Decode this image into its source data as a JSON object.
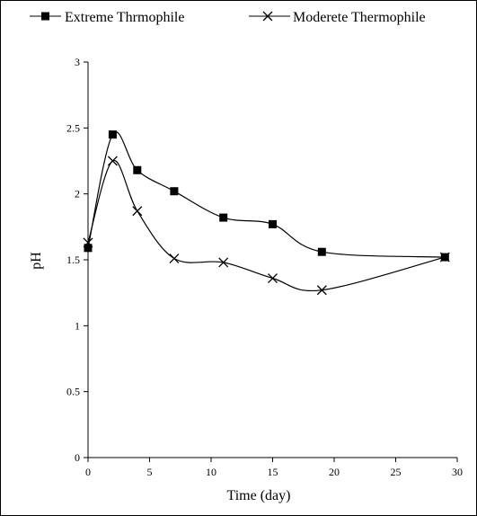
{
  "chart_data": {
    "type": "line",
    "title": "",
    "xlabel": "Time (day)",
    "ylabel": "pH",
    "xlim": [
      0,
      30
    ],
    "ylim": [
      0,
      3
    ],
    "x_ticks": [
      0,
      5,
      10,
      15,
      20,
      25,
      30
    ],
    "y_ticks": [
      0,
      0.5,
      1,
      1.5,
      2,
      2.5,
      3
    ],
    "x_tick_labels": [
      "0",
      "5",
      "10",
      "15",
      "20",
      "25",
      "30"
    ],
    "y_tick_labels": [
      "0",
      "0.5",
      "1",
      "1.5",
      "2",
      "2.5",
      "3"
    ],
    "grid": false,
    "legend_position": "top",
    "smooth": true,
    "series": [
      {
        "name": "Extreme Thrmophile",
        "marker": "square",
        "color": "#000000",
        "x": [
          0,
          2,
          4,
          7,
          11,
          15,
          19,
          29
        ],
        "y": [
          1.59,
          2.45,
          2.18,
          2.02,
          1.82,
          1.77,
          1.56,
          1.52
        ]
      },
      {
        "name": "Moderete Thermophile",
        "marker": "x",
        "color": "#000000",
        "x": [
          0,
          2,
          4,
          7,
          11,
          15,
          19,
          29
        ],
        "y": [
          1.63,
          2.25,
          1.87,
          1.51,
          1.48,
          1.36,
          1.27,
          1.52
        ]
      }
    ]
  }
}
